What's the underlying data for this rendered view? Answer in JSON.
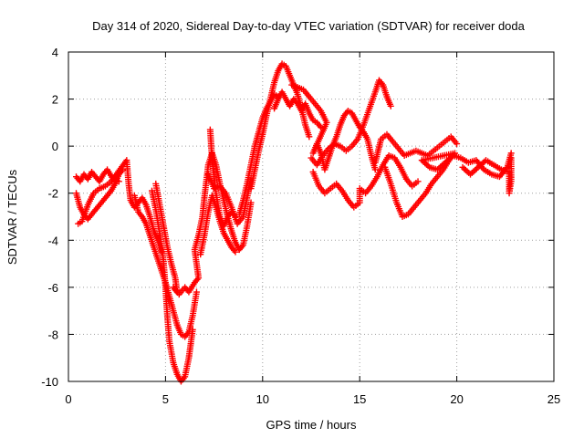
{
  "chart_data": {
    "type": "scatter",
    "title": "Day 314 of 2020, Sidereal Day-to-day VTEC variation (SDTVAR) for receiver doda",
    "xlabel": "GPS time / hours",
    "ylabel": "SDTVAR / TECUs",
    "xlim": [
      0,
      25
    ],
    "ylim": [
      -10,
      4
    ],
    "xticks": [
      0,
      5,
      10,
      15,
      20,
      25
    ],
    "yticks": [
      -10,
      -8,
      -6,
      -4,
      -2,
      0,
      2,
      4
    ],
    "xtick_labels": [
      "0",
      "5",
      "10",
      "15",
      "20",
      "25"
    ],
    "ytick_labels": [
      "-10",
      "-8",
      "-6",
      "-4",
      "-2",
      "0",
      "2",
      "4"
    ],
    "grid": true,
    "marker": "+",
    "series": [
      {
        "color": "#ff0000",
        "points": [
          [
            0.4,
            -1.3
          ],
          [
            0.6,
            -1.5
          ],
          [
            0.8,
            -1.2
          ],
          [
            1.0,
            -1.4
          ],
          [
            1.2,
            -1.1
          ],
          [
            1.4,
            -1.3
          ],
          [
            1.6,
            -1.5
          ],
          [
            1.8,
            -1.2
          ],
          [
            2.0,
            -1.0
          ],
          [
            2.3,
            -1.4
          ],
          [
            2.6,
            -1.5
          ],
          [
            0.4,
            -2.0
          ],
          [
            0.6,
            -2.6
          ],
          [
            0.8,
            -2.9
          ],
          [
            1.0,
            -3.1
          ],
          [
            1.2,
            -2.9
          ],
          [
            1.4,
            -2.7
          ],
          [
            1.6,
            -2.5
          ],
          [
            1.8,
            -2.3
          ],
          [
            2.0,
            -2.1
          ],
          [
            2.2,
            -1.9
          ],
          [
            2.4,
            -1.6
          ],
          [
            2.6,
            -1.2
          ],
          [
            2.8,
            -1.0
          ],
          [
            0.5,
            -3.3
          ],
          [
            0.7,
            -3.2
          ],
          [
            1.0,
            -2.5
          ],
          [
            1.3,
            -2.0
          ],
          [
            1.6,
            -1.8
          ],
          [
            1.9,
            -1.7
          ],
          [
            2.2,
            -1.5
          ],
          [
            3.0,
            -0.6
          ],
          [
            3.1,
            -1.6
          ],
          [
            3.2,
            -2.3
          ],
          [
            3.4,
            -2.6
          ],
          [
            3.6,
            -2.4
          ],
          [
            3.8,
            -2.2
          ],
          [
            4.0,
            -2.5
          ],
          [
            4.2,
            -3.0
          ],
          [
            4.4,
            -3.6
          ],
          [
            4.6,
            -4.0
          ],
          [
            4.8,
            -4.5
          ],
          [
            3.4,
            -2.1
          ],
          [
            3.6,
            -2.8
          ],
          [
            3.8,
            -3.0
          ],
          [
            4.0,
            -3.3
          ],
          [
            4.2,
            -3.8
          ],
          [
            4.4,
            -4.3
          ],
          [
            4.6,
            -4.8
          ],
          [
            4.8,
            -5.3
          ],
          [
            5.0,
            -5.8
          ],
          [
            5.2,
            -6.4
          ],
          [
            5.4,
            -7.0
          ],
          [
            5.6,
            -7.6
          ],
          [
            5.8,
            -8.0
          ],
          [
            6.0,
            -8.1
          ],
          [
            6.2,
            -7.9
          ],
          [
            6.4,
            -7.2
          ],
          [
            6.6,
            -6.2
          ],
          [
            4.3,
            -1.9
          ],
          [
            4.5,
            -2.7
          ],
          [
            4.7,
            -3.7
          ],
          [
            4.9,
            -4.9
          ],
          [
            5.0,
            -6.0
          ],
          [
            5.1,
            -7.3
          ],
          [
            5.2,
            -8.3
          ],
          [
            5.4,
            -9.2
          ],
          [
            5.6,
            -9.7
          ],
          [
            5.8,
            -10.0
          ],
          [
            6.0,
            -9.8
          ],
          [
            6.2,
            -9.0
          ],
          [
            6.4,
            -7.8
          ],
          [
            4.5,
            -1.6
          ],
          [
            4.7,
            -2.5
          ],
          [
            4.9,
            -3.4
          ],
          [
            5.1,
            -4.3
          ],
          [
            5.3,
            -5.0
          ],
          [
            5.5,
            -5.6
          ],
          [
            5.6,
            -6.2
          ],
          [
            5.4,
            -6.0
          ],
          [
            5.7,
            -6.3
          ],
          [
            6.0,
            -6.0
          ],
          [
            6.2,
            -6.2
          ],
          [
            6.5,
            -5.8
          ],
          [
            6.7,
            -5.6
          ],
          [
            6.5,
            -4.4
          ],
          [
            6.7,
            -3.8
          ],
          [
            6.9,
            -3.0
          ],
          [
            7.0,
            -2.2
          ],
          [
            7.1,
            -1.5
          ],
          [
            7.2,
            -0.8
          ],
          [
            7.4,
            -0.3
          ],
          [
            7.6,
            -0.8
          ],
          [
            7.8,
            -1.6
          ],
          [
            8.0,
            -2.3
          ],
          [
            8.2,
            -3.0
          ],
          [
            8.4,
            -3.6
          ],
          [
            8.6,
            -4.1
          ],
          [
            8.8,
            -4.4
          ],
          [
            9.0,
            -4.2
          ],
          [
            9.2,
            -3.4
          ],
          [
            9.4,
            -2.4
          ],
          [
            6.8,
            -4.6
          ],
          [
            7.0,
            -3.8
          ],
          [
            7.2,
            -2.8
          ],
          [
            7.4,
            -2.1
          ],
          [
            7.6,
            -2.6
          ],
          [
            7.8,
            -3.2
          ],
          [
            8.0,
            -3.7
          ],
          [
            8.2,
            -4.0
          ],
          [
            8.4,
            -4.3
          ],
          [
            8.6,
            -4.5
          ],
          [
            7.3,
            0.7
          ],
          [
            7.4,
            -0.6
          ],
          [
            7.6,
            -2.0
          ],
          [
            7.8,
            -3.0
          ],
          [
            8.0,
            -3.4
          ],
          [
            8.2,
            -3.0
          ],
          [
            8.4,
            -2.8
          ],
          [
            8.6,
            -3.0
          ],
          [
            7.2,
            -1.2
          ],
          [
            7.5,
            -1.8
          ],
          [
            7.8,
            -1.7
          ],
          [
            8.1,
            -2.0
          ],
          [
            8.4,
            -2.6
          ],
          [
            8.7,
            -3.3
          ],
          [
            9.0,
            -3.0
          ],
          [
            9.2,
            -2.2
          ],
          [
            9.4,
            -1.4
          ],
          [
            8.8,
            -2.9
          ],
          [
            9.0,
            -2.3
          ],
          [
            9.2,
            -1.6
          ],
          [
            9.4,
            -0.8
          ],
          [
            9.6,
            0.0
          ],
          [
            9.8,
            0.6
          ],
          [
            10.0,
            1.2
          ],
          [
            10.2,
            1.6
          ],
          [
            10.4,
            1.9
          ],
          [
            10.6,
            2.2
          ],
          [
            10.8,
            2.1
          ],
          [
            9.4,
            -1.8
          ],
          [
            9.6,
            -1.0
          ],
          [
            9.8,
            -0.2
          ],
          [
            10.0,
            0.5
          ],
          [
            10.2,
            1.3
          ],
          [
            10.4,
            2.0
          ],
          [
            10.6,
            2.7
          ],
          [
            10.8,
            3.2
          ],
          [
            11.0,
            3.5
          ],
          [
            11.2,
            3.4
          ],
          [
            11.4,
            3.0
          ],
          [
            11.6,
            2.6
          ],
          [
            11.8,
            2.2
          ],
          [
            12.0,
            1.6
          ],
          [
            12.2,
            0.9
          ],
          [
            12.4,
            0.4
          ],
          [
            10.6,
            1.6
          ],
          [
            10.8,
            2.0
          ],
          [
            11.0,
            2.3
          ],
          [
            11.2,
            2.0
          ],
          [
            11.4,
            1.7
          ],
          [
            11.6,
            2.0
          ],
          [
            11.8,
            1.8
          ],
          [
            12.0,
            1.5
          ],
          [
            12.2,
            1.8
          ],
          [
            12.4,
            1.4
          ],
          [
            12.6,
            1.1
          ],
          [
            12.8,
            1.0
          ],
          [
            13.0,
            0.8
          ],
          [
            11.5,
            2.6
          ],
          [
            11.8,
            2.5
          ],
          [
            12.1,
            2.4
          ],
          [
            12.4,
            2.1
          ],
          [
            12.7,
            1.8
          ],
          [
            13.0,
            1.5
          ],
          [
            13.3,
            1.0
          ],
          [
            12.6,
            -0.3
          ],
          [
            12.8,
            0.1
          ],
          [
            13.0,
            -0.3
          ],
          [
            13.2,
            -1.0
          ],
          [
            13.4,
            -0.5
          ],
          [
            13.6,
            0.0
          ],
          [
            13.8,
            0.4
          ],
          [
            14.0,
            0.9
          ],
          [
            14.2,
            1.3
          ],
          [
            14.4,
            1.5
          ],
          [
            14.6,
            1.4
          ],
          [
            14.8,
            1.1
          ],
          [
            15.0,
            0.8
          ],
          [
            15.2,
            0.6
          ],
          [
            15.4,
            0.3
          ],
          [
            15.6,
            -0.4
          ],
          [
            15.8,
            -1.0
          ],
          [
            12.5,
            -0.5
          ],
          [
            12.8,
            -0.8
          ],
          [
            13.1,
            -0.4
          ],
          [
            13.4,
            -0.1
          ],
          [
            13.7,
            0.1
          ],
          [
            14.0,
            0.0
          ],
          [
            14.3,
            -0.2
          ],
          [
            14.6,
            0.0
          ],
          [
            14.9,
            0.3
          ],
          [
            15.2,
            0.9
          ],
          [
            15.5,
            1.6
          ],
          [
            15.8,
            2.3
          ],
          [
            16.0,
            2.8
          ],
          [
            16.2,
            2.6
          ],
          [
            16.4,
            2.1
          ],
          [
            16.6,
            1.7
          ],
          [
            12.6,
            -1.1
          ],
          [
            12.9,
            -1.7
          ],
          [
            13.2,
            -2.0
          ],
          [
            13.5,
            -1.8
          ],
          [
            13.8,
            -1.6
          ],
          [
            14.1,
            -1.9
          ],
          [
            14.4,
            -2.3
          ],
          [
            14.7,
            -2.6
          ],
          [
            15.0,
            -2.4
          ],
          [
            15.0,
            -1.8
          ],
          [
            15.3,
            -2.0
          ],
          [
            15.6,
            -1.7
          ],
          [
            15.9,
            -1.3
          ],
          [
            16.2,
            -0.8
          ],
          [
            16.5,
            -0.4
          ],
          [
            16.8,
            -0.5
          ],
          [
            17.1,
            -0.9
          ],
          [
            17.4,
            -1.4
          ],
          [
            17.7,
            -1.7
          ],
          [
            18.0,
            -1.5
          ],
          [
            15.8,
            -0.7
          ],
          [
            16.1,
            0.3
          ],
          [
            16.4,
            0.5
          ],
          [
            16.7,
            0.2
          ],
          [
            17.0,
            -0.1
          ],
          [
            17.3,
            -0.4
          ],
          [
            17.6,
            -0.3
          ],
          [
            17.9,
            -0.2
          ],
          [
            18.2,
            -0.3
          ],
          [
            18.5,
            -0.4
          ],
          [
            18.8,
            -0.2
          ],
          [
            19.1,
            0.0
          ],
          [
            19.4,
            0.2
          ],
          [
            19.7,
            0.4
          ],
          [
            20.0,
            0.1
          ],
          [
            16.3,
            -0.9
          ],
          [
            16.6,
            -1.6
          ],
          [
            16.9,
            -2.4
          ],
          [
            17.2,
            -3.0
          ],
          [
            17.5,
            -2.9
          ],
          [
            17.8,
            -2.6
          ],
          [
            18.1,
            -2.3
          ],
          [
            18.4,
            -2.0
          ],
          [
            18.7,
            -1.6
          ],
          [
            19.0,
            -1.3
          ],
          [
            19.3,
            -1.0
          ],
          [
            19.6,
            -0.6
          ],
          [
            19.9,
            -0.3
          ],
          [
            18.2,
            -0.6
          ],
          [
            18.6,
            -0.9
          ],
          [
            19.0,
            -1.0
          ],
          [
            19.4,
            -0.7
          ],
          [
            19.8,
            -0.4
          ],
          [
            20.2,
            -0.5
          ],
          [
            20.6,
            -0.7
          ],
          [
            21.0,
            -0.6
          ],
          [
            21.4,
            -1.0
          ],
          [
            21.8,
            -1.2
          ],
          [
            22.2,
            -1.3
          ],
          [
            22.6,
            -0.9
          ],
          [
            22.8,
            -0.3
          ],
          [
            20.3,
            -0.9
          ],
          [
            20.7,
            -1.2
          ],
          [
            21.1,
            -0.9
          ],
          [
            21.5,
            -0.6
          ],
          [
            21.9,
            -0.8
          ],
          [
            22.3,
            -1.0
          ],
          [
            22.7,
            -1.1
          ],
          [
            22.7,
            -2.0
          ],
          [
            22.8,
            -1.5
          ],
          [
            22.8,
            -0.5
          ]
        ]
      }
    ]
  }
}
